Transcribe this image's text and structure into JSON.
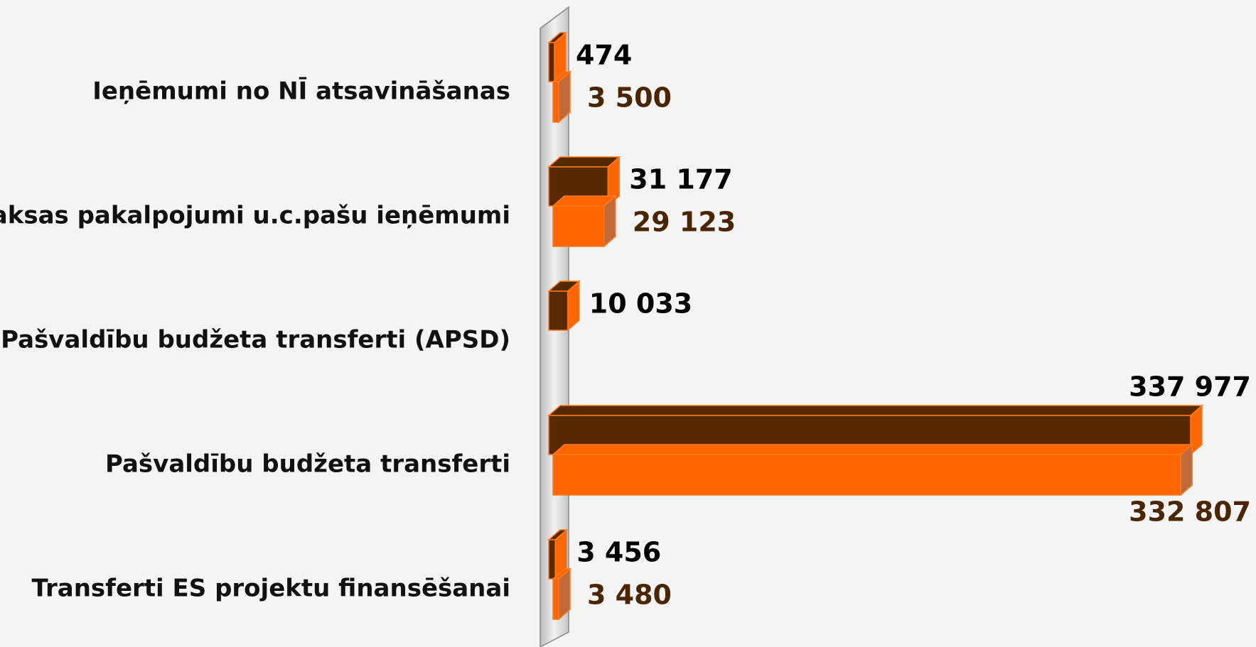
{
  "chart_data": {
    "type": "bar3d_horizontal",
    "categories": [
      "Ieņēmumi no NĪ atsavināšanas",
      "Maksas pakalpojumi u.c.pašu ieņēmumi",
      "Pašvaldību budžeta transferti (APSD)",
      "Pašvaldību budžeta transferti",
      "Transferti ES projektu finansēšanai"
    ],
    "series": [
      {
        "color": "#552a00",
        "side_color": "#ff6600",
        "label_color": "#000000",
        "values": [
          474,
          31177,
          10033,
          337977,
          3456
        ],
        "value_labels": [
          "474",
          "31 177",
          "10 033",
          "337 977",
          "3 456"
        ]
      },
      {
        "color": "#ff6600",
        "side_color": "#c06a3a",
        "label_color": "#4a2600",
        "values": [
          3500,
          29123,
          null,
          332807,
          3480
        ],
        "value_labels": [
          "3 500",
          "29 123",
          null,
          "332 807",
          "3 480"
        ]
      }
    ]
  }
}
